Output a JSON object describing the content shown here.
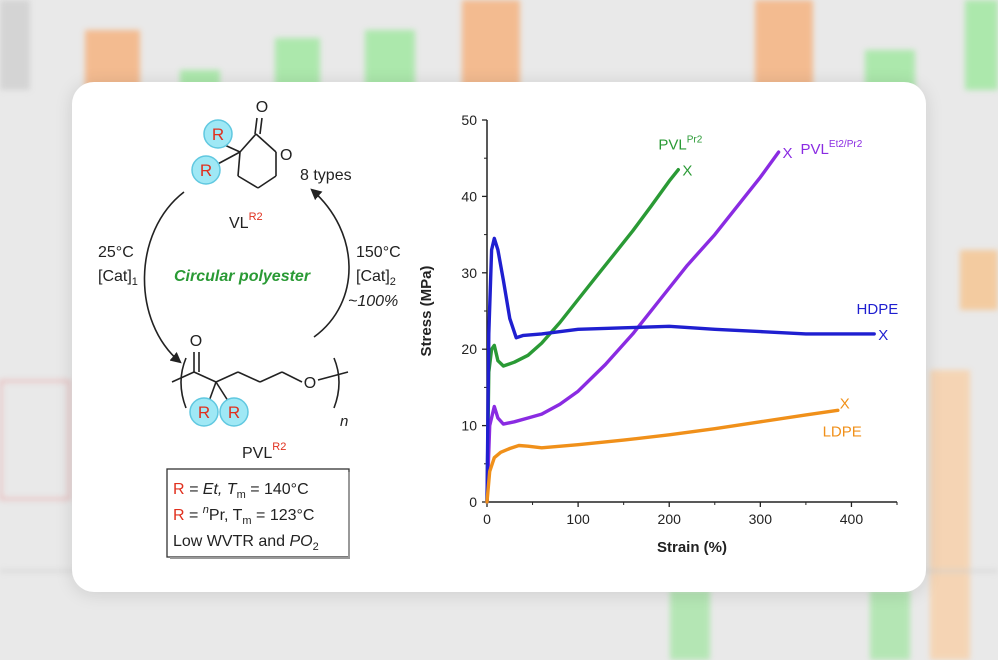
{
  "colors": {
    "pvl_pr2": "#2a9a35",
    "pvl_et2_pr2": "#8a2be2",
    "hdpe": "#1f1fd0",
    "ldpe": "#f0901a",
    "title_green": "#2a9a35",
    "r_red": "#e0301e",
    "circle_fill": "#9fe8f5"
  },
  "scheme": {
    "types_label": "8 types",
    "monomer_label": "VL",
    "monomer_sup": "R2",
    "polymer_label": "PVL",
    "polymer_sup": "R2",
    "forward_temp": "25°C",
    "forward_cat": "[Cat]",
    "forward_cat_sub": "1",
    "reverse_temp": "150°C",
    "reverse_cat": "[Cat]",
    "reverse_cat_sub": "2",
    "reverse_yield": "~100%",
    "title": "Circular polyester",
    "r_letter": "R",
    "atom_o": "O",
    "subscript_n": "n",
    "legend_line1_r": "R",
    "legend_line1_text": " = Et,  T",
    "legend_line1_sub": "m",
    "legend_line1_val": " = 140°C",
    "legend_line2_r": "R",
    "legend_line2_text": " = ",
    "legend_line2_sup": "n",
    "legend_line2_pr": "Pr,  T",
    "legend_line2_sub": "m",
    "legend_line2_val": " = 123°C",
    "legend_line3": "Low WVTR and ",
    "legend_line3_it": "PO",
    "legend_line3_sub": "2"
  },
  "chart_data": {
    "type": "line",
    "xlabel": "Strain (%)",
    "ylabel": "Stress (MPa)",
    "xlim": [
      0,
      450
    ],
    "ylim": [
      0,
      50
    ],
    "xticks": [
      0,
      100,
      200,
      300,
      400
    ],
    "yticks": [
      0,
      10,
      20,
      30,
      40,
      50
    ],
    "series": [
      {
        "name": "PVL",
        "sup": "Pr2",
        "color": "#2a9a35",
        "break_mark": "X",
        "x": [
          0,
          2,
          5,
          8,
          12,
          18,
          30,
          45,
          60,
          80,
          100,
          120,
          140,
          160,
          180,
          200,
          210
        ],
        "y": [
          0,
          17,
          20,
          20.5,
          18.5,
          17.8,
          18.3,
          19.2,
          20.8,
          23.5,
          26.5,
          29.5,
          32.5,
          35.5,
          38.7,
          42,
          43.5
        ]
      },
      {
        "name": "PVL",
        "sup": "Et2/Pr2",
        "color": "#8a2be2",
        "break_mark": "X",
        "x": [
          0,
          3,
          8,
          12,
          18,
          30,
          45,
          60,
          80,
          100,
          130,
          160,
          190,
          220,
          250,
          280,
          300,
          320
        ],
        "y": [
          0,
          10,
          12.5,
          11,
          10.2,
          10.5,
          11,
          11.5,
          12.8,
          14.5,
          18,
          22,
          26.5,
          31,
          35,
          39.5,
          42.5,
          45.8
        ]
      },
      {
        "name": "HDPE",
        "sup": "",
        "color": "#1f1fd0",
        "break_mark": "X",
        "x": [
          0,
          2,
          5,
          8,
          12,
          18,
          25,
          32,
          40,
          60,
          100,
          150,
          200,
          250,
          300,
          350,
          400,
          425
        ],
        "y": [
          0,
          22,
          33,
          34.5,
          33,
          29,
          24,
          21.5,
          21.8,
          22,
          22.6,
          22.8,
          23,
          22.6,
          22.3,
          22,
          22,
          22
        ]
      },
      {
        "name": "LDPE",
        "sup": "",
        "color": "#f0901a",
        "break_mark": "X",
        "x": [
          0,
          3,
          8,
          15,
          25,
          35,
          45,
          60,
          100,
          150,
          200,
          250,
          300,
          350,
          385
        ],
        "y": [
          0,
          4,
          5.8,
          6.5,
          7,
          7.4,
          7.3,
          7.1,
          7.5,
          8.1,
          8.8,
          9.6,
          10.5,
          11.4,
          12
        ]
      }
    ]
  }
}
